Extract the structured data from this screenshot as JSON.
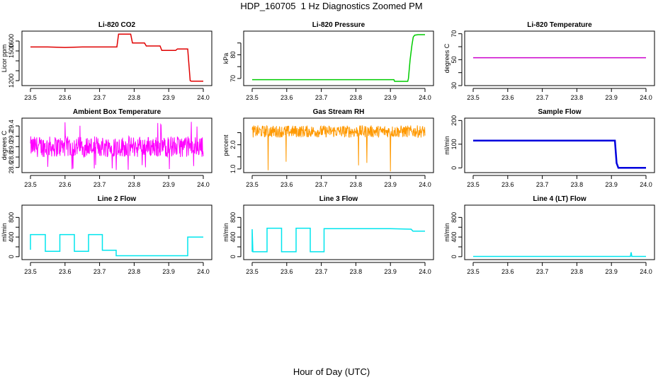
{
  "figure": {
    "title": "HDP_160705  1 Hz Diagnostics Zoomed PM",
    "xlabel": "Hour of Day (UTC)"
  },
  "chart_data": [
    {
      "type": "line",
      "title": "Li-820 CO2",
      "xlabel": "",
      "ylabel": "Licor ppm",
      "xlim": [
        23.5,
        24.0
      ],
      "ylim": [
        1150,
        1700
      ],
      "xticks": [
        23.5,
        23.6,
        23.7,
        23.8,
        23.9,
        24.0
      ],
      "yticks": [
        1200,
        1300,
        1400,
        1500,
        1600
      ],
      "yticklabels": [
        "1200",
        "",
        "",
        "1500",
        "1600"
      ],
      "color": "#e00000",
      "grid": false,
      "legend": "none",
      "x": [
        23.5,
        23.55,
        23.6,
        23.65,
        23.7,
        23.75,
        23.755,
        23.79,
        23.795,
        23.83,
        23.835,
        23.875,
        23.88,
        23.92,
        23.925,
        23.955,
        23.962,
        23.965,
        24.0
      ],
      "y": [
        1540,
        1540,
        1535,
        1540,
        1540,
        1540,
        1670,
        1670,
        1580,
        1580,
        1550,
        1550,
        1505,
        1505,
        1520,
        1520,
        1200,
        1195,
        1195
      ]
    },
    {
      "type": "line",
      "title": "Li-820 Pressure",
      "xlabel": "",
      "ylabel": "kPa",
      "xlim": [
        23.5,
        24.0
      ],
      "ylim": [
        67,
        90
      ],
      "xticks": [
        23.5,
        23.6,
        23.7,
        23.8,
        23.9,
        24.0
      ],
      "yticks": [
        70,
        75,
        80,
        85
      ],
      "yticklabels": [
        "70",
        "",
        "80",
        ""
      ],
      "color": "#00cc00",
      "grid": false,
      "legend": "none",
      "x": [
        23.5,
        23.6,
        23.7,
        23.8,
        23.9,
        23.91,
        23.912,
        23.95,
        23.952,
        23.957,
        23.962,
        23.966,
        23.97,
        23.98,
        24.0
      ],
      "y": [
        69.5,
        69.5,
        69.5,
        69.5,
        69.5,
        69.5,
        68.8,
        68.8,
        70.0,
        78.0,
        84.0,
        87.5,
        88.3,
        88.5,
        88.5
      ]
    },
    {
      "type": "line",
      "title": "Li-820 Temperature",
      "xlabel": "",
      "ylabel": "degrees C",
      "xlim": [
        23.5,
        24.0
      ],
      "ylim": [
        30,
        72
      ],
      "xticks": [
        23.5,
        23.6,
        23.7,
        23.8,
        23.9,
        24.0
      ],
      "yticks": [
        30,
        40,
        50,
        60,
        70
      ],
      "yticklabels": [
        "30",
        "",
        "50",
        "",
        "70"
      ],
      "color": "#cc00cc",
      "grid": false,
      "legend": "none",
      "x": [
        23.5,
        24.0
      ],
      "y": [
        51.5,
        51.5
      ]
    },
    {
      "type": "line",
      "title": "Ambient Box Temperature",
      "xlabel": "",
      "ylabel": "degrees C",
      "xlim": [
        23.5,
        24.0
      ],
      "ylim": [
        28.5,
        29.55
      ],
      "xticks": [
        23.5,
        23.6,
        23.7,
        23.8,
        23.9,
        24.0
      ],
      "yticks": [
        28.6,
        28.8,
        29.0,
        29.2,
        29.4
      ],
      "yticklabels": [
        "28.6",
        "28.8",
        "29.0",
        "29.2",
        "29.4"
      ],
      "color": "#ff00ff",
      "grid": false,
      "legend": "none",
      "noise": {
        "base": 29.0,
        "band": [
          28.8,
          29.2
        ],
        "spikes_low": 28.55,
        "spikes_high": 29.48
      },
      "x": [
        23.5,
        23.6,
        23.7,
        23.8,
        23.9,
        24.0
      ],
      "y": [
        29.0,
        29.0,
        29.0,
        29.0,
        29.0,
        29.0
      ]
    },
    {
      "type": "line",
      "title": "Gas Stream RH",
      "xlabel": "",
      "ylabel": "percent",
      "xlim": [
        23.5,
        24.0
      ],
      "ylim": [
        0.85,
        3.1
      ],
      "xticks": [
        23.5,
        23.6,
        23.7,
        23.8,
        23.9,
        24.0
      ],
      "yticks": [
        1.0,
        1.5,
        2.0,
        2.5
      ],
      "yticklabels": [
        "1.0",
        "",
        "2.0",
        ""
      ],
      "color": "#ff9900",
      "grid": false,
      "legend": "none",
      "noise": {
        "base": 2.55,
        "band": [
          2.3,
          2.8
        ]
      },
      "dips": [
        [
          23.546,
          0.95
        ],
        [
          23.598,
          1.3
        ],
        [
          23.808,
          1.15
        ],
        [
          23.832,
          1.25
        ],
        [
          23.9,
          0.9
        ]
      ],
      "x": [
        23.5,
        23.6,
        23.7,
        23.8,
        23.9,
        24.0
      ],
      "y": [
        2.55,
        2.55,
        2.55,
        2.55,
        2.55,
        2.55
      ]
    },
    {
      "type": "line",
      "title": "Sample Flow",
      "xlabel": "",
      "ylabel": "ml/min",
      "xlim": [
        23.5,
        24.0
      ],
      "ylim": [
        -20,
        210
      ],
      "xticks": [
        23.5,
        23.6,
        23.7,
        23.8,
        23.9,
        24.0
      ],
      "yticks": [
        0,
        100,
        200
      ],
      "yticklabels": [
        "0",
        "100",
        "200"
      ],
      "color": "#0000dd",
      "grid": false,
      "legend": "none",
      "x": [
        23.5,
        23.6,
        23.7,
        23.8,
        23.9,
        23.91,
        23.915,
        23.92,
        24.0
      ],
      "y": [
        115,
        115,
        115,
        115,
        115,
        115,
        20,
        0,
        0
      ]
    },
    {
      "type": "line",
      "title": "Line 2 Flow",
      "xlabel": "",
      "ylabel": "ml/min",
      "xlim": [
        23.5,
        24.0
      ],
      "ylim": [
        -60,
        1050
      ],
      "xticks": [
        23.5,
        23.6,
        23.7,
        23.8,
        23.9,
        24.0
      ],
      "yticks": [
        0,
        200,
        400,
        600,
        800
      ],
      "yticklabels": [
        "0",
        "",
        "400",
        "",
        "800"
      ],
      "color": "#00e5ee",
      "grid": false,
      "legend": "none",
      "x": [
        23.5,
        23.5,
        23.543,
        23.543,
        23.585,
        23.585,
        23.627,
        23.627,
        23.668,
        23.668,
        23.708,
        23.708,
        23.748,
        23.748,
        23.955,
        23.955,
        24.0
      ],
      "y": [
        140,
        450,
        450,
        110,
        110,
        450,
        450,
        110,
        110,
        450,
        450,
        130,
        130,
        20,
        20,
        400,
        400
      ]
    },
    {
      "type": "line",
      "title": "Line 3 Flow",
      "xlabel": "",
      "ylabel": "ml/min",
      "xlim": [
        23.5,
        24.0
      ],
      "ylim": [
        -60,
        1050
      ],
      "xticks": [
        23.5,
        23.6,
        23.7,
        23.8,
        23.9,
        24.0
      ],
      "yticks": [
        0,
        200,
        400,
        600,
        800
      ],
      "yticklabels": [
        "0",
        "",
        "400",
        "",
        "800"
      ],
      "color": "#00e5ee",
      "grid": false,
      "legend": "none",
      "x": [
        23.5,
        23.5,
        23.502,
        23.543,
        23.543,
        23.585,
        23.585,
        23.627,
        23.627,
        23.668,
        23.668,
        23.708,
        23.708,
        23.8,
        23.9,
        23.96,
        23.965,
        24.0
      ],
      "y": [
        100,
        560,
        100,
        100,
        580,
        580,
        100,
        100,
        580,
        580,
        100,
        100,
        570,
        570,
        570,
        560,
        520,
        520
      ]
    },
    {
      "type": "line",
      "title": "Line 4 (LT) Flow",
      "xlabel": "",
      "ylabel": "ml/min",
      "xlim": [
        23.5,
        24.0
      ],
      "ylim": [
        -60,
        1050
      ],
      "xticks": [
        23.5,
        23.6,
        23.7,
        23.8,
        23.9,
        24.0
      ],
      "yticks": [
        0,
        200,
        400,
        600,
        800
      ],
      "yticklabels": [
        "0",
        "",
        "400",
        "",
        "800"
      ],
      "color": "#00e5ee",
      "grid": false,
      "legend": "none",
      "x": [
        23.5,
        23.6,
        23.7,
        23.8,
        23.9,
        23.955,
        23.957,
        23.959,
        23.961,
        24.0
      ],
      "y": [
        5,
        5,
        5,
        5,
        5,
        5,
        90,
        5,
        5,
        5
      ]
    }
  ]
}
